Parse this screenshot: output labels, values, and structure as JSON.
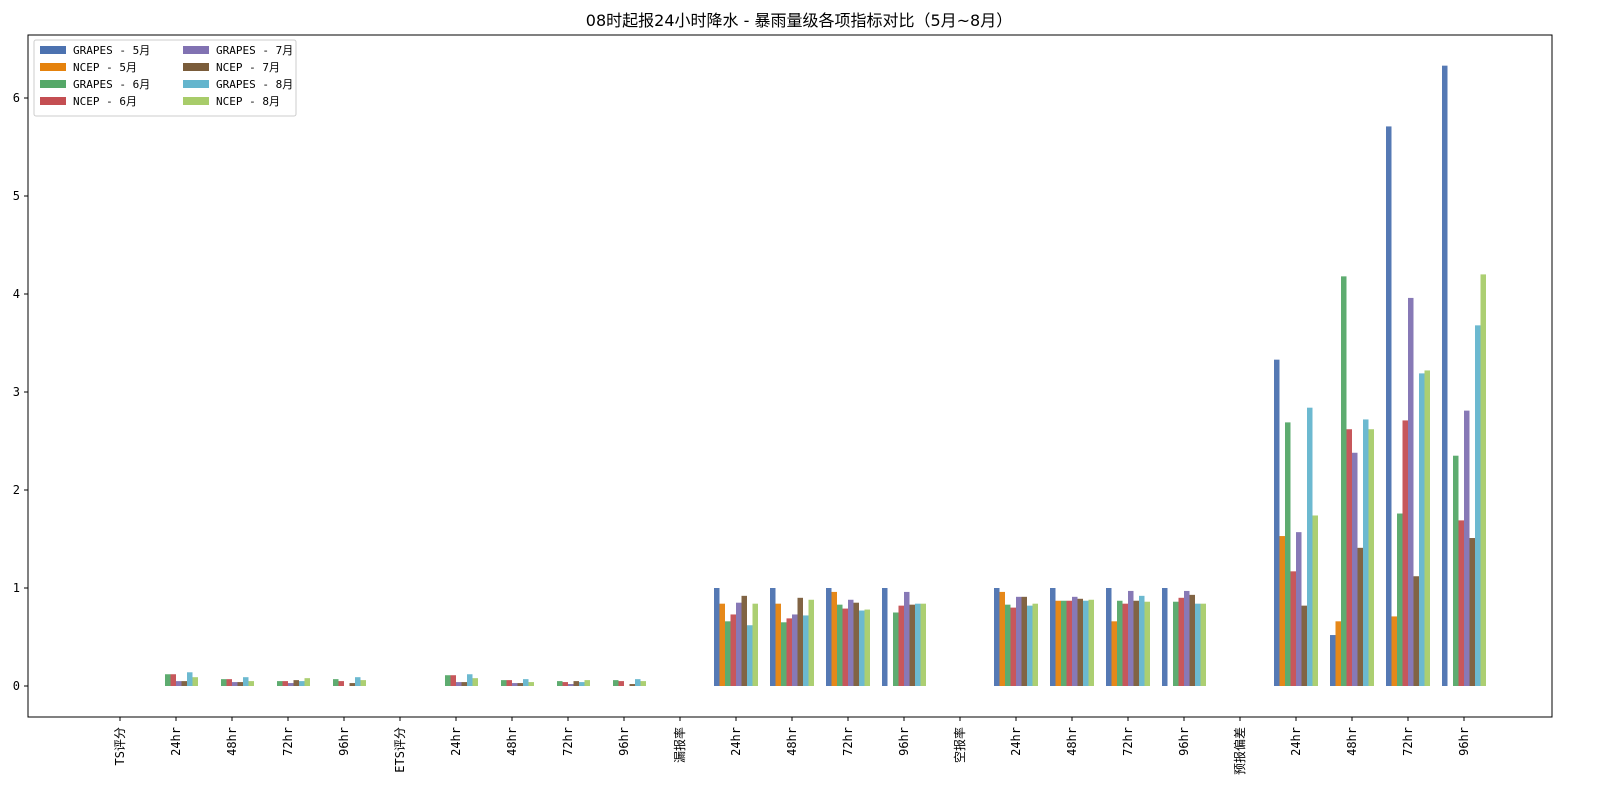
{
  "chart_data": {
    "type": "bar",
    "title": "08时起报24小时降水 - 暴雨量级各项指标对比（5月~8月）",
    "xlabel": "",
    "ylabel": "",
    "categories": [
      "TS评分",
      "24hr",
      "48hr",
      "72hr",
      "96hr",
      "ETS评分",
      "24hr",
      "48hr",
      "72hr",
      "96hr",
      "漏报率",
      "24hr",
      "48hr",
      "72hr",
      "96hr",
      "空报率",
      "24hr",
      "48hr",
      "72hr",
      "96hr",
      "预报偏差",
      "24hr",
      "48hr",
      "72hr",
      "96hr"
    ],
    "ylim": [
      -0.33,
      6.5
    ],
    "yticks": [
      0,
      1,
      2,
      3,
      4,
      5,
      6
    ],
    "grid": false,
    "legend_position": "top-left",
    "series": [
      {
        "name": "GRAPES - 5月",
        "color": "#4c72b0",
        "values": [
          0,
          0,
          0,
          0,
          0,
          0,
          0,
          0,
          0,
          0,
          0,
          1.0,
          1.0,
          1.0,
          1.0,
          0,
          1.0,
          1.0,
          1.0,
          1.0,
          0,
          3.33,
          0.52,
          5.71,
          6.33
        ]
      },
      {
        "name": "NCEP - 5月",
        "color": "#e5820d",
        "values": [
          0,
          0,
          0,
          0,
          0,
          0,
          0,
          0,
          0,
          0,
          0,
          0.84,
          0.84,
          0.96,
          0,
          0,
          0.96,
          0.87,
          0.66,
          0,
          0,
          1.53,
          0.66,
          0.71,
          0
        ]
      },
      {
        "name": "GRAPES - 6月",
        "color": "#55a868",
        "values": [
          0,
          0.12,
          0.07,
          0.05,
          0.07,
          0,
          0.11,
          0.06,
          0.05,
          0.06,
          0,
          0.66,
          0.65,
          0.83,
          0.75,
          0,
          0.83,
          0.87,
          0.87,
          0.86,
          0,
          2.69,
          4.18,
          1.76,
          2.35
        ]
      },
      {
        "name": "NCEP - 6月",
        "color": "#c44e52",
        "values": [
          0,
          0.12,
          0.07,
          0.05,
          0.05,
          0,
          0.11,
          0.06,
          0.04,
          0.05,
          0,
          0.73,
          0.69,
          0.79,
          0.82,
          0,
          0.8,
          0.87,
          0.84,
          0.9,
          0,
          1.17,
          2.62,
          2.71,
          1.69
        ]
      },
      {
        "name": "GRAPES - 7月",
        "color": "#8172b2",
        "values": [
          0,
          0.05,
          0.04,
          0.03,
          0,
          0,
          0.04,
          0.03,
          0.02,
          0,
          0,
          0.85,
          0.73,
          0.88,
          0.96,
          0,
          0.91,
          0.91,
          0.97,
          0.97,
          0,
          1.57,
          2.38,
          3.96,
          2.81
        ]
      },
      {
        "name": "NCEP - 7月",
        "color": "#7a5c3a",
        "values": [
          0,
          0.05,
          0.04,
          0.06,
          0.03,
          0,
          0.04,
          0.03,
          0.05,
          0.02,
          0,
          0.92,
          0.9,
          0.85,
          0.83,
          0,
          0.91,
          0.89,
          0.87,
          0.93,
          0,
          0.82,
          1.41,
          1.12,
          1.51
        ]
      },
      {
        "name": "GRAPES - 8月",
        "color": "#64b5cd",
        "values": [
          0,
          0.14,
          0.09,
          0.05,
          0.09,
          0,
          0.12,
          0.07,
          0.04,
          0.07,
          0,
          0.62,
          0.72,
          0.77,
          0.84,
          0,
          0.82,
          0.87,
          0.92,
          0.84,
          0,
          2.84,
          2.72,
          3.19,
          3.68
        ]
      },
      {
        "name": "NCEP - 8月",
        "color": "#a8cc6a",
        "values": [
          0,
          0.09,
          0.05,
          0.08,
          0.06,
          0,
          0.08,
          0.04,
          0.06,
          0.05,
          0,
          0.84,
          0.88,
          0.78,
          0.84,
          0,
          0.84,
          0.88,
          0.86,
          0.84,
          0,
          1.74,
          2.62,
          3.22,
          4.2
        ]
      }
    ]
  }
}
